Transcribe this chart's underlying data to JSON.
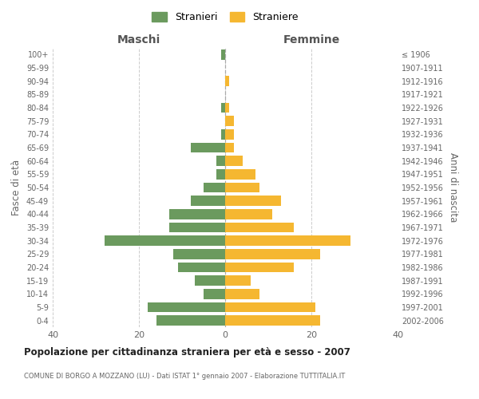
{
  "age_groups": [
    "0-4",
    "5-9",
    "10-14",
    "15-19",
    "20-24",
    "25-29",
    "30-34",
    "35-39",
    "40-44",
    "45-49",
    "50-54",
    "55-59",
    "60-64",
    "65-69",
    "70-74",
    "75-79",
    "80-84",
    "85-89",
    "90-94",
    "95-99",
    "100+"
  ],
  "birth_years": [
    "2002-2006",
    "1997-2001",
    "1992-1996",
    "1987-1991",
    "1982-1986",
    "1977-1981",
    "1972-1976",
    "1967-1971",
    "1962-1966",
    "1957-1961",
    "1952-1956",
    "1947-1951",
    "1942-1946",
    "1937-1941",
    "1932-1936",
    "1927-1931",
    "1922-1926",
    "1917-1921",
    "1912-1916",
    "1907-1911",
    "≤ 1906"
  ],
  "maschi": [
    16,
    18,
    5,
    7,
    11,
    12,
    28,
    13,
    13,
    8,
    5,
    2,
    2,
    8,
    1,
    0,
    1,
    0,
    0,
    0,
    1
  ],
  "femmine": [
    22,
    21,
    8,
    6,
    16,
    22,
    29,
    16,
    11,
    13,
    8,
    7,
    4,
    2,
    2,
    2,
    1,
    0,
    1,
    0,
    0
  ],
  "color_maschi": "#6b9a5e",
  "color_femmine": "#f5b731",
  "background_color": "#ffffff",
  "grid_color": "#cccccc",
  "title": "Popolazione per cittadinanza straniera per età e sesso - 2007",
  "subtitle": "COMUNE DI BORGO A MOZZANO (LU) - Dati ISTAT 1° gennaio 2007 - Elaborazione TUTTITALIA.IT",
  "ylabel_left": "Fasce di età",
  "ylabel_right": "Anni di nascita",
  "xlabel_left": "Maschi",
  "xlabel_right": "Femmine",
  "legend_maschi": "Stranieri",
  "legend_femmine": "Straniere",
  "xlim": 40
}
